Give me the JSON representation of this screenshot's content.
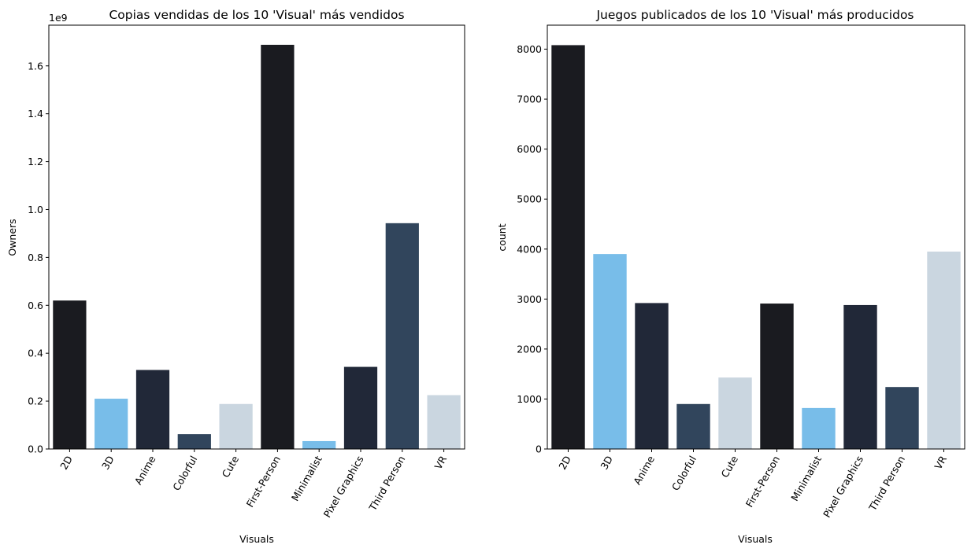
{
  "chart_data": [
    {
      "type": "bar",
      "title": "Copias vendidas de los 10 'Visual' más vendidos",
      "xlabel": "Visuals",
      "ylabel": "Owners",
      "offset_label": "1e9",
      "categories": [
        "2D",
        "3D",
        "Anime",
        "Colorful",
        "Cute",
        "First-Person",
        "Minimalist",
        "Pixel Graphics",
        "Third Person",
        "VR"
      ],
      "values": [
        0.62,
        0.21,
        0.33,
        0.062,
        0.188,
        1.688,
        0.033,
        0.343,
        0.943,
        0.225
      ],
      "ylim": [
        0,
        1.77
      ],
      "yticks": [
        0.0,
        0.2,
        0.4,
        0.6,
        0.8,
        1.0,
        1.2,
        1.4,
        1.6
      ],
      "ytick_labels": [
        "0.0",
        "0.2",
        "0.4",
        "0.6",
        "0.8",
        "1.0",
        "1.2",
        "1.4",
        "1.6"
      ],
      "colors": [
        "#1a1b20",
        "#78bde9",
        "#212838",
        "#31455c",
        "#cad6e0",
        "#1a1b20",
        "#78bde9",
        "#212838",
        "#31455c",
        "#cad6e0"
      ],
      "grid": false,
      "legend": "none"
    },
    {
      "type": "bar",
      "title": "Juegos publicados de los 10 'Visual' más producidos",
      "xlabel": "Visuals",
      "ylabel": "count",
      "categories": [
        "2D",
        "3D",
        "Anime",
        "Colorful",
        "Cute",
        "First-Person",
        "Minimalist",
        "Pixel Graphics",
        "Third Person",
        "VR"
      ],
      "values": [
        8080,
        3900,
        2920,
        900,
        1430,
        2910,
        820,
        2880,
        1240,
        3950
      ],
      "ylim": [
        0,
        8480
      ],
      "yticks": [
        0,
        1000,
        2000,
        3000,
        4000,
        5000,
        6000,
        7000,
        8000
      ],
      "ytick_labels": [
        "0",
        "1000",
        "2000",
        "3000",
        "4000",
        "5000",
        "6000",
        "7000",
        "8000"
      ],
      "colors": [
        "#1a1b20",
        "#78bde9",
        "#212838",
        "#31455c",
        "#cad6e0",
        "#1a1b20",
        "#78bde9",
        "#212838",
        "#31455c",
        "#cad6e0"
      ],
      "grid": false,
      "legend": "none"
    }
  ]
}
